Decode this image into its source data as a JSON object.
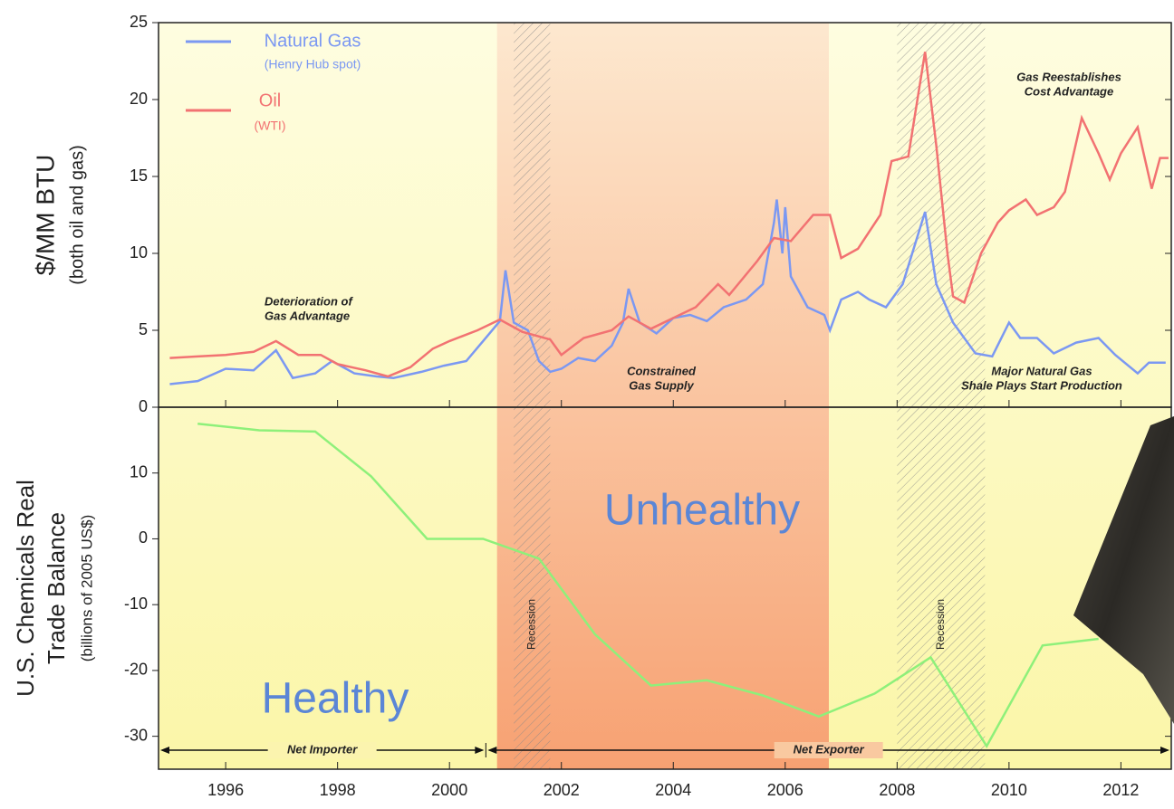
{
  "chart_data": [
    {
      "type": "line",
      "y_label": [
        "$/MM BTU",
        "(both oil and gas)"
      ],
      "xlim": [
        1994.8,
        2012.9
      ],
      "xticks": [
        1996,
        1998,
        2000,
        2002,
        2004,
        2006,
        2008,
        2010,
        2012
      ],
      "ylim": [
        0,
        25
      ],
      "yticks": [
        0,
        5,
        10,
        15,
        20,
        25
      ],
      "phase": {
        "start": 2000.85,
        "end": 2006.78
      },
      "recessions": [
        {
          "label": "Recession",
          "start": 2001.15,
          "end": 2001.8
        },
        {
          "label": "Recession",
          "start": 2008.0,
          "end": 2009.57
        }
      ],
      "annotations": [
        [
          "Deterioration of",
          "Gas Advantage"
        ],
        [
          "Constrained",
          "Gas Supply"
        ],
        [
          "Gas Reestablishes",
          "Cost Advantage"
        ],
        [
          "Major Natural Gas",
          "Shale Plays Start Production"
        ]
      ],
      "series": [
        {
          "name": "Natural Gas",
          "note": "(Henry Hub spot)",
          "color": "#7b98f2",
          "x": [
            1995.0,
            1995.5,
            1996.0,
            1996.5,
            1996.9,
            1997.2,
            1997.6,
            1997.9,
            1998.3,
            1998.7,
            1999.0,
            1999.5,
            1999.9,
            2000.3,
            2000.6,
            2000.9,
            2001.0,
            2001.15,
            2001.4,
            2001.6,
            2001.8,
            2002.0,
            2002.3,
            2002.6,
            2002.9,
            2003.1,
            2003.2,
            2003.4,
            2003.7,
            2004.0,
            2004.3,
            2004.6,
            2004.9,
            2005.3,
            2005.6,
            2005.8,
            2005.85,
            2005.95,
            2006.0,
            2006.1,
            2006.4,
            2006.7,
            2006.8,
            2007.0,
            2007.3,
            2007.5,
            2007.8,
            2008.1,
            2008.5,
            2008.7,
            2009.0,
            2009.4,
            2009.7,
            2010.0,
            2010.2,
            2010.5,
            2010.8,
            2011.2,
            2011.6,
            2011.9,
            2012.3,
            2012.5,
            2012.8
          ],
          "values": [
            1.5,
            1.7,
            2.5,
            2.4,
            3.7,
            1.9,
            2.2,
            3.0,
            2.2,
            2.0,
            1.9,
            2.3,
            2.7,
            3.0,
            4.3,
            5.6,
            8.9,
            5.5,
            5.0,
            3.0,
            2.3,
            2.5,
            3.2,
            3.0,
            4.0,
            5.5,
            7.7,
            5.5,
            4.8,
            5.8,
            6.0,
            5.6,
            6.5,
            7.0,
            8.0,
            12.0,
            13.5,
            10.0,
            13.0,
            8.5,
            6.5,
            6.0,
            5.0,
            7.0,
            7.5,
            7.0,
            6.5,
            8.0,
            12.7,
            8.0,
            5.5,
            3.5,
            3.3,
            5.5,
            4.5,
            4.5,
            3.5,
            4.2,
            4.5,
            3.4,
            2.2,
            2.9,
            2.9
          ]
        },
        {
          "name": "Oil",
          "note": "(WTI)",
          "color": "#f27272",
          "x": [
            1995.0,
            1995.5,
            1996.0,
            1996.5,
            1996.9,
            1997.3,
            1997.7,
            1998.0,
            1998.5,
            1998.9,
            1999.3,
            1999.7,
            2000.0,
            2000.5,
            2000.9,
            2001.3,
            2001.8,
            2002.0,
            2002.4,
            2002.9,
            2003.2,
            2003.6,
            2004.0,
            2004.4,
            2004.8,
            2005.0,
            2005.5,
            2005.8,
            2006.1,
            2006.5,
            2006.8,
            2007.0,
            2007.3,
            2007.7,
            2007.9,
            2008.2,
            2008.5,
            2008.7,
            2008.9,
            2009.0,
            2009.2,
            2009.5,
            2009.8,
            2010.0,
            2010.3,
            2010.5,
            2010.8,
            2011.0,
            2011.3,
            2011.6,
            2011.8,
            2012.0,
            2012.3,
            2012.55,
            2012.7,
            2012.85
          ],
          "values": [
            3.2,
            3.3,
            3.4,
            3.6,
            4.3,
            3.4,
            3.4,
            2.8,
            2.4,
            2.0,
            2.6,
            3.8,
            4.3,
            5.0,
            5.7,
            4.9,
            4.4,
            3.4,
            4.5,
            5.0,
            5.9,
            5.1,
            5.8,
            6.5,
            8.0,
            7.3,
            9.5,
            11.0,
            10.8,
            12.5,
            12.5,
            9.7,
            10.3,
            12.5,
            16.0,
            16.3,
            23.1,
            17.0,
            10.0,
            7.2,
            6.8,
            10.0,
            12.0,
            12.8,
            13.5,
            12.5,
            13.0,
            14.0,
            18.8,
            16.5,
            14.8,
            16.5,
            18.2,
            14.2,
            16.2,
            16.2
          ]
        }
      ]
    },
    {
      "type": "line",
      "y_label": [
        "U.S. Chemicals Real",
        "Trade Balance",
        "(billions of 2005 US$)"
      ],
      "xlim": [
        1994.8,
        2012.9
      ],
      "xticks": [
        1996,
        1998,
        2000,
        2002,
        2004,
        2006,
        2008,
        2010,
        2012
      ],
      "ylim": [
        -35,
        20
      ],
      "yticks": [
        -30,
        -20,
        -10,
        0,
        10
      ],
      "annotations": [
        "Unhealthy",
        "Healthy"
      ],
      "spans": [
        {
          "label": "Net Importer",
          "start": 1994.8,
          "end": 2000.65
        },
        {
          "label": "Net Exporter",
          "start": 2000.65,
          "end": 2012.9
        }
      ],
      "series": [
        {
          "name": "Trade Balance",
          "color": "#8ef07a",
          "x": [
            1995.5,
            1996.6,
            1997.6,
            1998.6,
            1999.6,
            2000.6,
            2001.6,
            2002.6,
            2003.6,
            2004.6,
            2005.6,
            2006.6,
            2007.6,
            2008.6,
            2009.6,
            2010.6,
            2011.6
          ],
          "values": [
            17.5,
            16.5,
            16.3,
            9.5,
            0,
            0,
            -3,
            -14.5,
            -22.3,
            -21.5,
            -23.8,
            -27,
            -23.5,
            -18,
            -31.5,
            -16.2,
            -15.2
          ]
        }
      ]
    }
  ]
}
